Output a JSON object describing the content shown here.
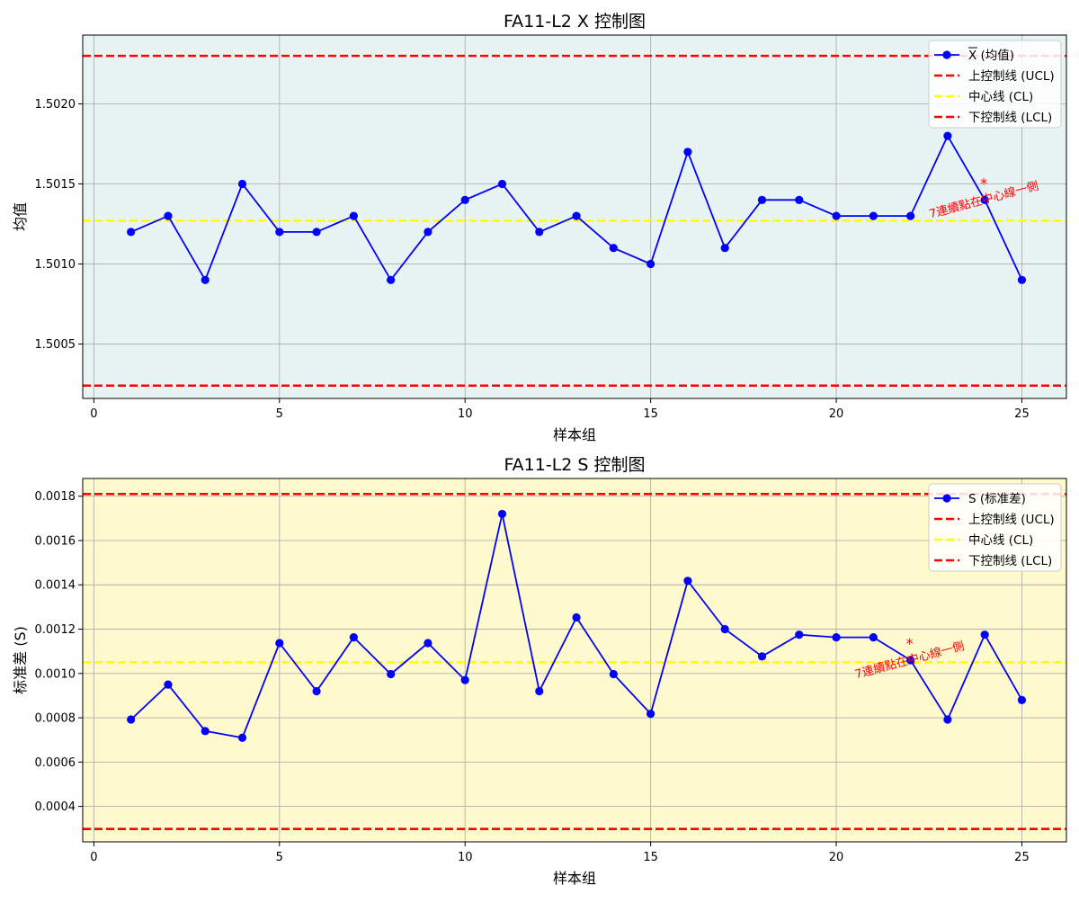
{
  "chart_data": [
    {
      "type": "line",
      "title": "FA11-L2 X 控制图",
      "xlabel": "样本组",
      "ylabel": "均值",
      "background": "#e8f4f4",
      "xlim": [
        -0.3,
        26.2
      ],
      "ylim": [
        1.50016,
        1.50243
      ],
      "xticks": [
        0,
        5,
        10,
        15,
        20,
        25
      ],
      "yticks": [
        1.5005,
        1.501,
        1.5015,
        1.502
      ],
      "yticklabels": [
        "1.5005",
        "1.5010",
        "1.5015",
        "1.5020"
      ],
      "grid": true,
      "legend_position": "top-right",
      "series": [
        {
          "name": "X (均值)",
          "legend_label": "X (均值)",
          "overline": true,
          "color": "#0000ff",
          "marker": "circle",
          "x": [
            1,
            2,
            3,
            4,
            5,
            6,
            7,
            8,
            9,
            10,
            11,
            12,
            13,
            14,
            15,
            16,
            17,
            18,
            19,
            20,
            21,
            22,
            23,
            24,
            25
          ],
          "y": [
            1.5012,
            1.5013,
            1.5009,
            1.5015,
            1.5012,
            1.5012,
            1.5013,
            1.5009,
            1.5012,
            1.5014,
            1.5015,
            1.5012,
            1.5013,
            1.5011,
            1.501,
            1.5017,
            1.5011,
            1.5014,
            1.5014,
            1.5013,
            1.5013,
            1.5013,
            1.5018,
            1.5014,
            1.5009
          ]
        }
      ],
      "lines": [
        {
          "name": "上控制线 (UCL)",
          "value": 1.5023,
          "color": "#ff0000"
        },
        {
          "name": "中心线 (CL)",
          "value": 1.50127,
          "color": "#ffff00"
        },
        {
          "name": "下控制线 (LCL)",
          "value": 1.50024,
          "color": "#ff0000"
        }
      ],
      "annotation": {
        "text": "7連續點在中心線一側",
        "marker": "*",
        "x": 24,
        "y": 1.5014
      }
    },
    {
      "type": "line",
      "title": "FA11-L2 S 控制图",
      "xlabel": "样本组",
      "ylabel": "标准差 (S)",
      "background": "#fffacd",
      "xlim": [
        -0.3,
        26.2
      ],
      "ylim": [
        0.00024,
        0.00188
      ],
      "xticks": [
        0,
        5,
        10,
        15,
        20,
        25
      ],
      "yticks": [
        0.0004,
        0.0006,
        0.0008,
        0.001,
        0.0012,
        0.0014,
        0.0016,
        0.0018
      ],
      "yticklabels": [
        "0.0004",
        "0.0006",
        "0.0008",
        "0.0010",
        "0.0012",
        "0.0014",
        "0.0016",
        "0.0018"
      ],
      "grid": true,
      "legend_position": "top-right",
      "series": [
        {
          "name": "S (标准差)",
          "legend_label": "S (标准差)",
          "overline": false,
          "color": "#0000ff",
          "marker": "circle",
          "x": [
            1,
            2,
            3,
            4,
            5,
            6,
            7,
            8,
            9,
            10,
            11,
            12,
            13,
            14,
            15,
            16,
            17,
            18,
            19,
            20,
            21,
            22,
            23,
            24,
            25
          ],
          "y": [
            0.000792,
            0.00095,
            0.00074,
            0.00071,
            0.001137,
            0.00092,
            0.001163,
            0.000997,
            0.001137,
            0.00097,
            0.00172,
            0.00092,
            0.001253,
            0.000997,
            0.000818,
            0.001418,
            0.0012,
            0.001077,
            0.001175,
            0.001163,
            0.001163,
            0.00106,
            0.000792,
            0.001175,
            0.00088
          ]
        }
      ],
      "lines": [
        {
          "name": "上控制线 (UCL)",
          "value": 0.00181,
          "color": "#ff0000"
        },
        {
          "name": "中心线 (CL)",
          "value": 0.00105,
          "color": "#ffff00"
        },
        {
          "name": "下控制线 (LCL)",
          "value": 0.000298,
          "color": "#ff0000"
        }
      ],
      "annotation": {
        "text": "7連續點在中心線一側",
        "marker": "*",
        "x": 22,
        "y": 0.00106
      }
    }
  ]
}
